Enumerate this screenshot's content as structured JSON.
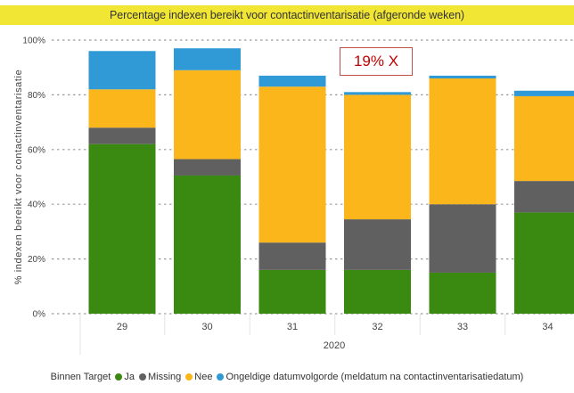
{
  "chart_data": {
    "type": "bar",
    "stacked": true,
    "title": "Percentage indexen bereikt voor contactinventarisatie (afgeronde weken)",
    "ylabel": "% indexen bereikt voor contactinventarisatie",
    "xlabel": "2020",
    "categories": [
      "29",
      "30",
      "31",
      "32",
      "33",
      "34"
    ],
    "ylim": [
      0,
      100
    ],
    "yticks": [
      "0%",
      "20%",
      "40%",
      "60%",
      "80%",
      "100%"
    ],
    "grid": true,
    "legend_position": "bottom",
    "legend_title": "Binnen Target",
    "series": [
      {
        "name": "Ja",
        "color": "#3a8a12",
        "values": [
          62,
          50.5,
          16,
          16,
          15,
          37
        ]
      },
      {
        "name": "Missing",
        "color": "#606060",
        "values": [
          6,
          6,
          10,
          18.5,
          25,
          11.5
        ]
      },
      {
        "name": "Nee",
        "color": "#fbb61c",
        "values": [
          14,
          32.5,
          57,
          45.5,
          46,
          31
        ]
      },
      {
        "name": "Ongeldige datumvolgorde (meldatum na contactinventarisatiedatum)",
        "color": "#2f9ad6",
        "values": [
          14,
          8,
          4,
          1,
          1,
          2
        ]
      }
    ],
    "annotation": "19% X",
    "annotation_color": "#c00000"
  }
}
